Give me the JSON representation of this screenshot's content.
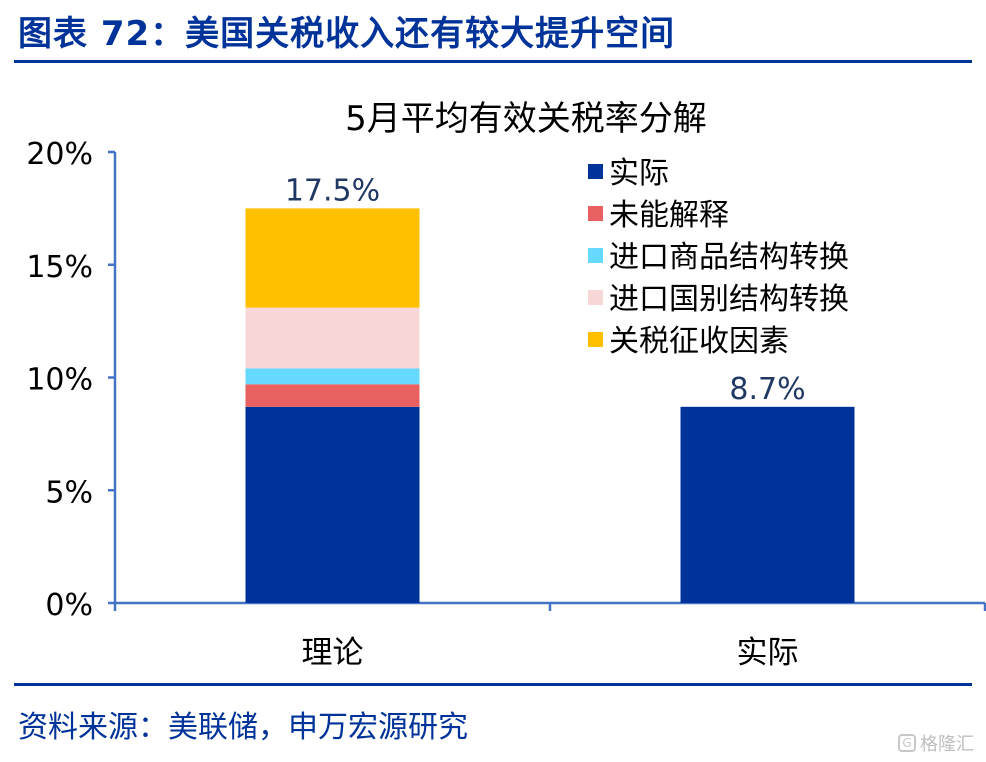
{
  "figure_header": "图表 72：美国关税收入还有较大提升空间",
  "source": "资料来源：美联储，申万宏源研究",
  "watermark": "格隆汇",
  "chart_data": {
    "type": "bar",
    "stacked": true,
    "title": "5月平均有效关税率分解",
    "categories": [
      "理论",
      "实际"
    ],
    "series": [
      {
        "name": "实际",
        "color": "#003399",
        "values": [
          8.7,
          8.7
        ]
      },
      {
        "name": "未能解释",
        "color": "#E8605F",
        "values": [
          1.0,
          0
        ]
      },
      {
        "name": "进口商品结构转换",
        "color": "#66D9FF",
        "values": [
          0.7,
          0
        ]
      },
      {
        "name": "进口国别结构转换",
        "color": "#F8D7D7",
        "values": [
          2.7,
          0
        ]
      },
      {
        "name": "关税征收因素",
        "color": "#FFC000",
        "values": [
          4.4,
          0
        ]
      }
    ],
    "totals": [
      17.5,
      8.7
    ],
    "total_labels": [
      "17.5%",
      "8.7%"
    ],
    "yticks": [
      "0%",
      "5%",
      "10%",
      "15%",
      "20%"
    ],
    "ylim": [
      0,
      20
    ],
    "xlabel": "",
    "ylabel": "",
    "grid": false,
    "legend_position": "top-right"
  }
}
